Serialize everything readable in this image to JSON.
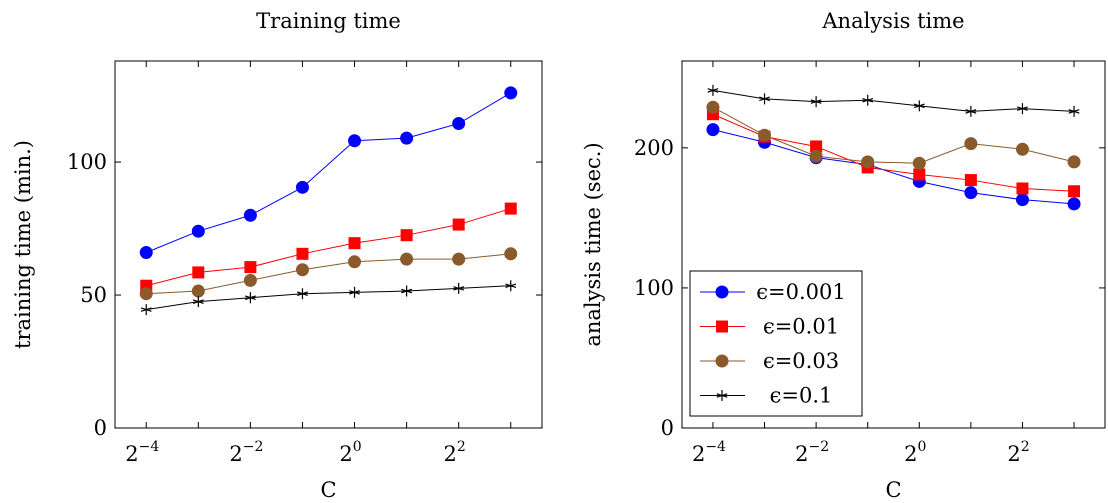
{
  "chart_data": [
    {
      "type": "line",
      "title": "Training time",
      "xlabel": "C",
      "ylabel": "training time (min.)",
      "x": [
        -4,
        -3,
        -2,
        -1,
        0,
        1,
        2,
        3
      ],
      "xtick_values": [
        -4,
        -2,
        0,
        2
      ],
      "xtick_labels": [
        {
          "base": "2",
          "exp": "−4"
        },
        {
          "base": "2",
          "exp": "−2"
        },
        {
          "base": "2",
          "exp": "0"
        },
        {
          "base": "2",
          "exp": "2"
        }
      ],
      "xlim": [
        -4.6,
        3.6
      ],
      "ylim": [
        0,
        138
      ],
      "yticks": [
        0,
        50,
        100
      ],
      "ytick_labels": [
        "0",
        "50",
        "100"
      ],
      "grid": false,
      "legend": false,
      "series": [
        {
          "label": "ϵ=0.001",
          "color": "#0000ff",
          "marker": "circle",
          "values": [
            66,
            74,
            80,
            90.5,
            108,
            109,
            114.5,
            126
          ]
        },
        {
          "label": "ϵ=0.01",
          "color": "#ff0000",
          "marker": "square",
          "values": [
            53.5,
            58.5,
            60.5,
            65.5,
            69.5,
            72.5,
            76.5,
            82.5
          ]
        },
        {
          "label": "ϵ=0.03",
          "color": "#8b5a2b",
          "marker": "circle",
          "values": [
            50.5,
            51.5,
            55.5,
            59.5,
            62.5,
            63.5,
            63.5,
            65.5
          ]
        },
        {
          "label": "ϵ=0.1",
          "color": "#000000",
          "marker": "star",
          "values": [
            44.5,
            47.5,
            49,
            50.5,
            51,
            51.5,
            52.5,
            53.5
          ]
        }
      ]
    },
    {
      "type": "line",
      "title": "Analysis time",
      "xlabel": "C",
      "ylabel": "analysis time (sec.)",
      "x": [
        -4,
        -3,
        -2,
        -1,
        0,
        1,
        2,
        3
      ],
      "xtick_values": [
        -4,
        -2,
        0,
        2
      ],
      "xtick_labels": [
        {
          "base": "2",
          "exp": "−4"
        },
        {
          "base": "2",
          "exp": "−2"
        },
        {
          "base": "2",
          "exp": "0"
        },
        {
          "base": "2",
          "exp": "2"
        }
      ],
      "xlim": [
        -4.6,
        3.6
      ],
      "ylim": [
        0,
        262
      ],
      "yticks": [
        0,
        100,
        200
      ],
      "ytick_labels": [
        "0",
        "100",
        "200"
      ],
      "grid": false,
      "legend": true,
      "legend_position": "bottom-left",
      "series": [
        {
          "label": "ϵ=0.001",
          "color": "#0000ff",
          "marker": "circle",
          "values": [
            213,
            204,
            193,
            188,
            176,
            168,
            163,
            160
          ]
        },
        {
          "label": "ϵ=0.01",
          "color": "#ff0000",
          "marker": "square",
          "values": [
            224,
            208,
            201,
            186,
            181,
            177,
            171,
            169
          ]
        },
        {
          "label": "ϵ=0.03",
          "color": "#8b5a2b",
          "marker": "circle",
          "values": [
            229,
            209,
            194,
            190,
            189,
            203,
            199,
            190
          ]
        },
        {
          "label": "ϵ=0.1",
          "color": "#000000",
          "marker": "star",
          "values": [
            241,
            235,
            233,
            234,
            230,
            226,
            228,
            226
          ]
        }
      ]
    }
  ]
}
